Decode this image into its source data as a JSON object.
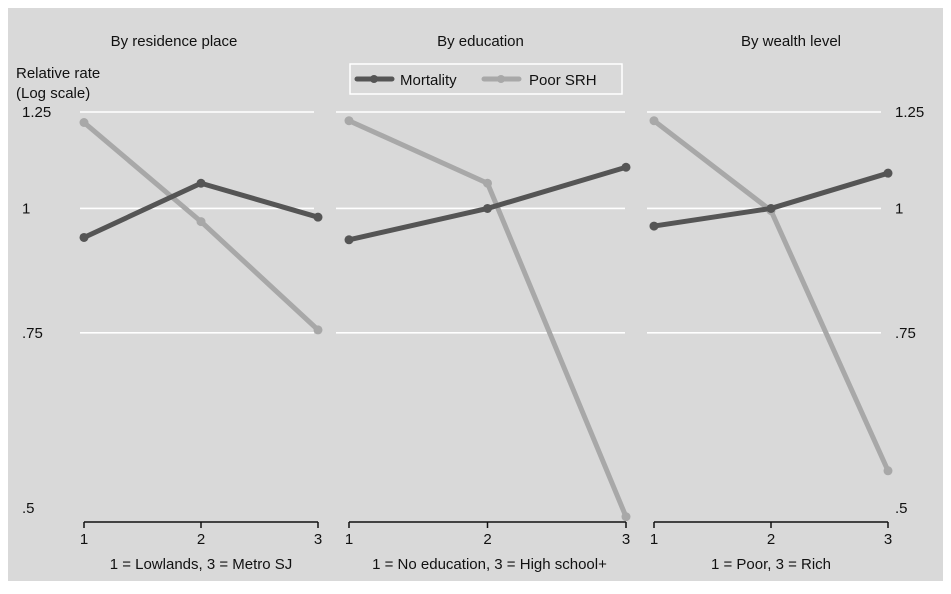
{
  "colors": {
    "background": "#d9d9d9",
    "plot_bg": "#d9d9d9",
    "grid": "#ffffff",
    "mortality": "#555555",
    "poor_srh": "#a8a8a8",
    "axis": "#111111"
  },
  "legend": {
    "mortality": "Mortality",
    "poor_srh": "Poor SRH"
  },
  "y_axis_title_line1": "Relative rate",
  "y_axis_title_line2": "(Log scale)",
  "chart_data": [
    {
      "type": "line",
      "title": "By residence place",
      "xlabel": "1 = Lowlands, 3 = Metro SJ",
      "x": [
        1,
        2,
        3
      ],
      "x_tick_labels": [
        "1",
        "2",
        "3"
      ],
      "y_scale": "log",
      "ylim": [
        0.5,
        1.25
      ],
      "y_ticks": [
        0.5,
        0.75,
        1,
        1.25
      ],
      "y_tick_labels": [
        ".5",
        ".75",
        "1",
        "1.25"
      ],
      "grid": true,
      "series": [
        {
          "name": "Mortality",
          "values": [
            0.935,
            1.06,
            0.98
          ]
        },
        {
          "name": "Poor SRH",
          "values": [
            1.22,
            0.97,
            0.755
          ]
        }
      ]
    },
    {
      "type": "line",
      "title": "By education",
      "xlabel": "1 = No education, 3 = High school+",
      "x": [
        1,
        2,
        3
      ],
      "x_tick_labels": [
        "1",
        "2",
        "3"
      ],
      "y_scale": "log",
      "ylim": [
        0.5,
        1.25
      ],
      "y_ticks": [
        0.5,
        0.75,
        1,
        1.25
      ],
      "y_tick_labels": [
        ".5",
        ".75",
        "1",
        "1.25"
      ],
      "grid": true,
      "series": [
        {
          "name": "Mortality",
          "values": [
            0.93,
            1.0,
            1.1
          ]
        },
        {
          "name": "Poor SRH",
          "values": [
            1.225,
            1.06,
            0.49
          ]
        }
      ]
    },
    {
      "type": "line",
      "title": "By wealth level",
      "xlabel": "1 = Poor, 3 = Rich",
      "x": [
        1,
        2,
        3
      ],
      "x_tick_labels": [
        "1",
        "2",
        "3"
      ],
      "y_scale": "log",
      "ylim": [
        0.5,
        1.25
      ],
      "y_ticks": [
        0.5,
        0.75,
        1,
        1.25
      ],
      "y_tick_labels": [
        ".5",
        ".75",
        "1",
        "1.25"
      ],
      "grid": true,
      "series": [
        {
          "name": "Mortality",
          "values": [
            0.96,
            1.0,
            1.085
          ]
        },
        {
          "name": "Poor SRH",
          "values": [
            1.225,
            0.995,
            0.545
          ]
        }
      ]
    }
  ]
}
